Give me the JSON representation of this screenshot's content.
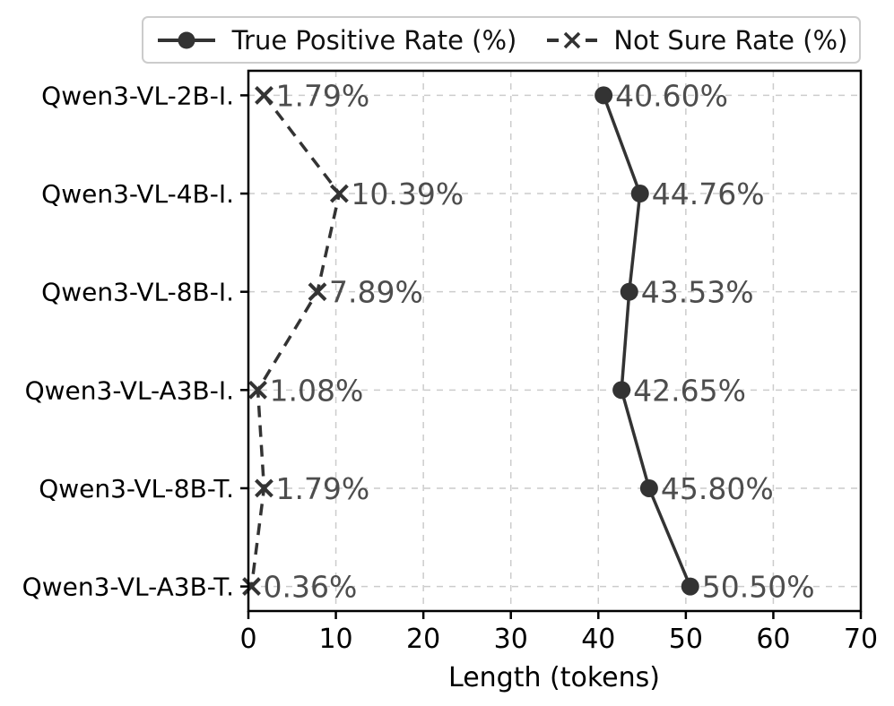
{
  "chart_data": {
    "type": "line",
    "orientation": "horizontal",
    "title": "",
    "xlabel": "Length (tokens)",
    "ylabel": "",
    "xlim": [
      0,
      70
    ],
    "x_ticks": [
      0,
      10,
      20,
      30,
      40,
      50,
      60,
      70
    ],
    "grid": true,
    "grid_style": "dashed",
    "legend_position": "top center",
    "categories": [
      "Qwen3-VL-2B-I.",
      "Qwen3-VL-4B-I.",
      "Qwen3-VL-8B-I.",
      "Qwen3-VL-A3B-I.",
      "Qwen3-VL-8B-T.",
      "Qwen3-VL-A3B-T."
    ],
    "series": [
      {
        "name": "True Positive Rate (%)",
        "marker": "circle",
        "line_style": "solid",
        "values": [
          40.6,
          44.76,
          43.53,
          42.65,
          45.8,
          50.5
        ],
        "point_labels": [
          "40.60%",
          "44.76%",
          "43.53%",
          "42.65%",
          "45.80%",
          "50.50%"
        ]
      },
      {
        "name": "Not Sure Rate (%)",
        "marker": "x",
        "line_style": "dashed",
        "values": [
          1.79,
          10.39,
          7.89,
          1.08,
          1.79,
          0.36
        ],
        "point_labels": [
          "1.79%",
          "10.39%",
          "7.89%",
          "1.08%",
          "1.79%",
          "0.36%"
        ]
      }
    ],
    "colors": {
      "series": "#333333",
      "point_label": "#4d4d4d",
      "grid": "#cccccc",
      "axis": "#000000",
      "legend_border": "#cccccc"
    }
  }
}
